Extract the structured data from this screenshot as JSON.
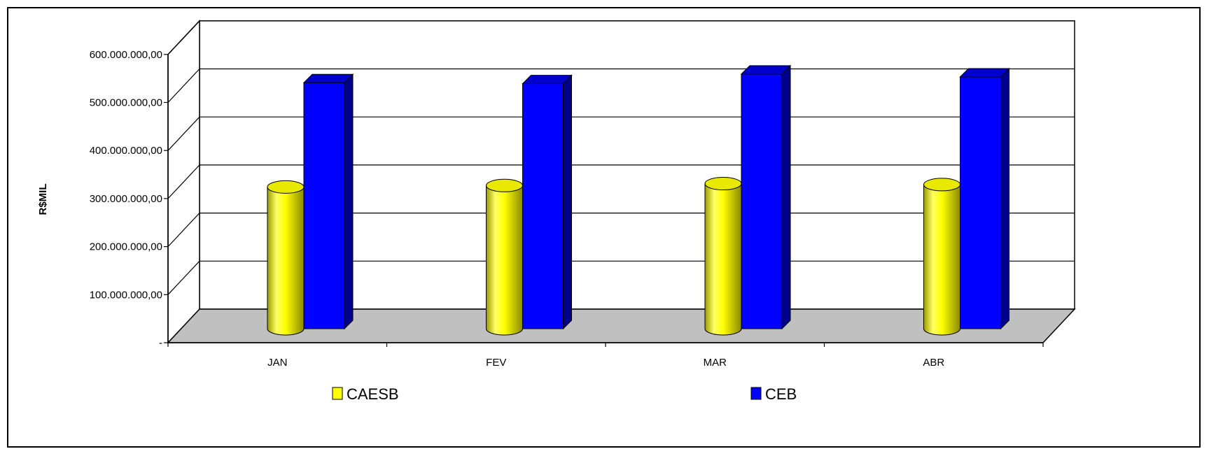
{
  "chart_data": {
    "type": "bar",
    "title": "",
    "xlabel": "",
    "ylabel": "R$MIL",
    "categories": [
      "JAN",
      "FEV",
      "MAR",
      "ABR"
    ],
    "ylim": [
      0,
      600000000
    ],
    "yticks": [
      0,
      100000000,
      200000000,
      300000000,
      400000000,
      500000000,
      600000000
    ],
    "ytick_labels": [
      "-",
      "100.000.000,00",
      "200.000.000,00",
      "300.000.000,00",
      "400.000.000,00",
      "500.000.000,00",
      "600.000.000,00"
    ],
    "grid": true,
    "legend_position": "bottom",
    "series": [
      {
        "name": "CAESB",
        "shape": "cylinder",
        "color": "#FFFF00",
        "values": [
          295000000,
          298000000,
          302000000,
          300000000
        ]
      },
      {
        "name": "CEB",
        "shape": "box",
        "color": "#0000FF",
        "values": [
          512000000,
          510000000,
          530000000,
          524000000
        ]
      }
    ],
    "floor_color": "#C0C0C0"
  }
}
